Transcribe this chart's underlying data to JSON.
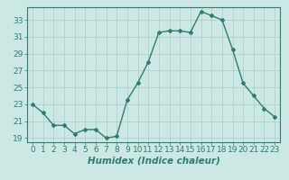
{
  "x": [
    0,
    1,
    2,
    3,
    4,
    5,
    6,
    7,
    8,
    9,
    10,
    11,
    12,
    13,
    14,
    15,
    16,
    17,
    18,
    19,
    20,
    21,
    22,
    23
  ],
  "y": [
    23,
    22,
    20.5,
    20.5,
    19.5,
    20,
    20,
    19,
    19.2,
    23.5,
    25.5,
    28,
    31.5,
    31.7,
    31.7,
    31.5,
    34,
    33.5,
    33,
    29.5,
    25.5,
    24,
    22.5,
    21.5
  ],
  "line_color": "#2e7d6e",
  "marker": "D",
  "marker_size": 2.0,
  "line_width": 1.0,
  "bg_color": "#cce8e4",
  "grid_color": "#aaccc8",
  "xlabel": "Humidex (Indice chaleur)",
  "xlim": [
    -0.5,
    23.5
  ],
  "ylim": [
    18.5,
    34.5
  ],
  "yticks": [
    19,
    21,
    23,
    25,
    27,
    29,
    31,
    33
  ],
  "tick_color": "#2e7d6e",
  "label_fontsize": 7.5,
  "tick_fontsize": 6.5
}
